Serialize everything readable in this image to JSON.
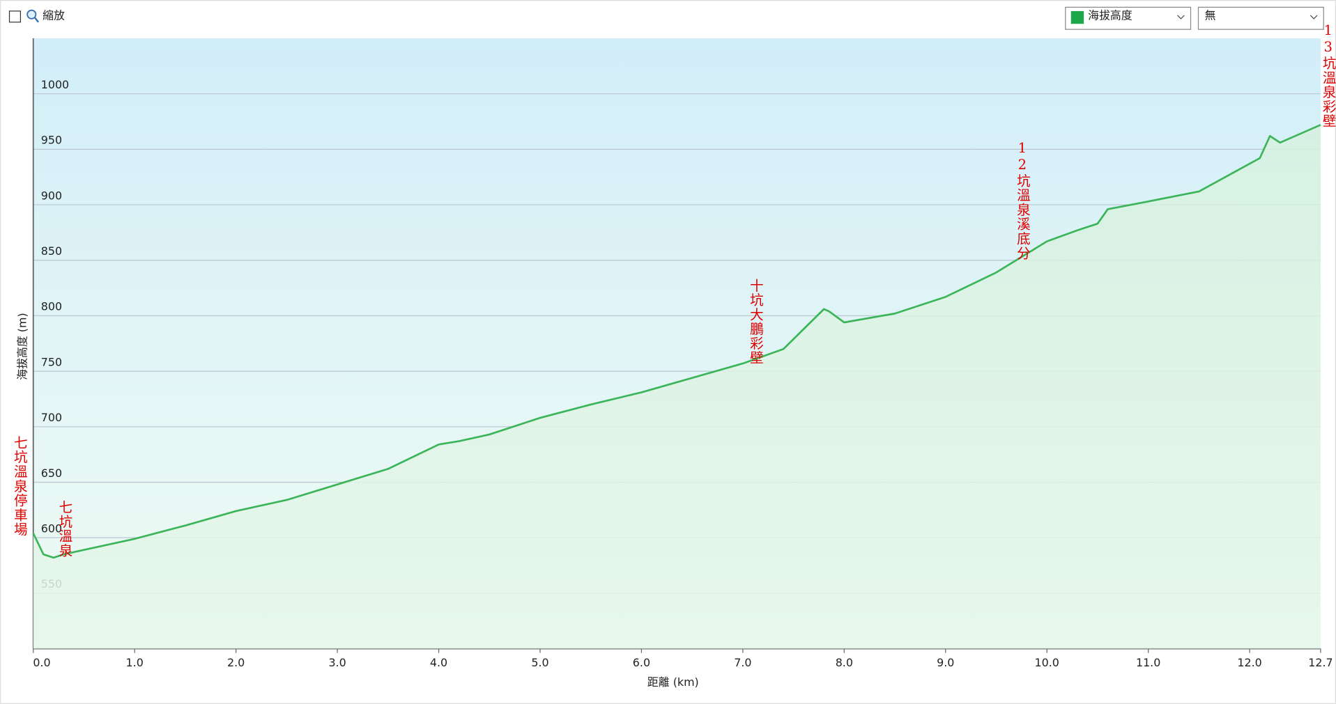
{
  "ui": {
    "zoom_label": "縮放",
    "second_select": "無"
  },
  "chart_data": {
    "type": "area",
    "y_label": "海拔高度 (m)",
    "x_label": "距離 (km)",
    "x": [
      0,
      0.1,
      0.2,
      0.3,
      0.5,
      1.0,
      1.5,
      2.0,
      2.5,
      3.0,
      3.5,
      4.0,
      4.2,
      4.5,
      5.0,
      5.5,
      6.0,
      6.5,
      7.0,
      7.4,
      7.8,
      7.85,
      8.0,
      8.5,
      9.0,
      9.5,
      10.0,
      10.3,
      10.5,
      10.6,
      11.0,
      11.5,
      12.0,
      12.1,
      12.2,
      12.3,
      12.5,
      12.7
    ],
    "series": [
      {
        "name": "海拔高度",
        "color": "#3cb55a",
        "values": [
          604,
          585,
          582,
          585,
          589,
          599,
          611,
          624,
          634,
          648,
          662,
          684,
          687,
          693,
          708,
          720,
          731,
          744,
          757,
          770,
          806,
          804,
          794,
          802,
          817,
          839,
          867,
          877,
          883,
          896,
          903,
          912,
          937,
          942,
          962,
          956,
          964,
          972
        ]
      }
    ],
    "xlim": [
      0,
      12.7
    ],
    "xticks": [
      {
        "value": 0,
        "label": "0.0"
      },
      {
        "value": 1,
        "label": "1.0"
      },
      {
        "value": 2,
        "label": "2.0"
      },
      {
        "value": 3,
        "label": "3.0"
      },
      {
        "value": 4,
        "label": "4.0"
      },
      {
        "value": 5,
        "label": "5.0"
      },
      {
        "value": 6,
        "label": "6.0"
      },
      {
        "value": 7,
        "label": "7.0"
      },
      {
        "value": 8,
        "label": "8.0"
      },
      {
        "value": 9,
        "label": "9.0"
      },
      {
        "value": 10,
        "label": "10.0"
      },
      {
        "value": 11,
        "label": "11.0"
      },
      {
        "value": 12,
        "label": "12.0"
      },
      {
        "value": 12.7,
        "label": "12.7"
      }
    ],
    "ylim": [
      500,
      1050
    ],
    "yticks": [
      550,
      600,
      650,
      700,
      750,
      800,
      850,
      900,
      950,
      1000
    ],
    "grid": true,
    "annotations": [
      {
        "text": "七坑溫泉停車場",
        "x": 0
      },
      {
        "text": "七坑溫泉",
        "x": 0.3
      },
      {
        "text": "十坑大鵬彩壁",
        "x": 7.05
      },
      {
        "text": "12坑溫泉溪底分",
        "x": 9.75
      },
      {
        "text": "13坑溫泉彩壁",
        "x": 12.7
      }
    ]
  }
}
